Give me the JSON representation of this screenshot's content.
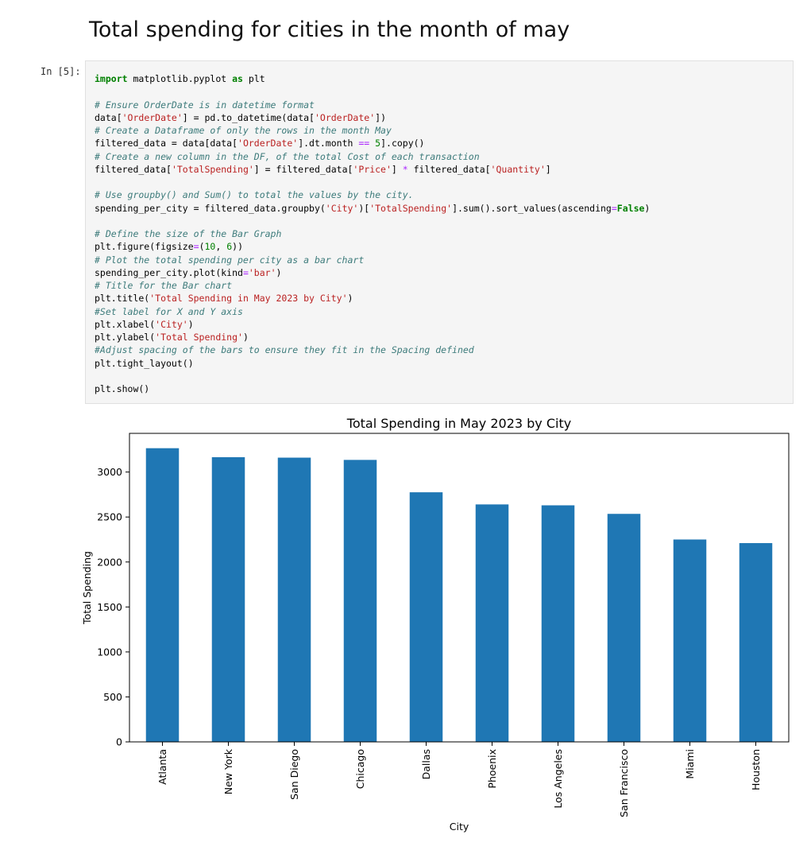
{
  "markdown": {
    "heading": "Total spending for cities in the month of may"
  },
  "cell": {
    "prompt": "In [5]:",
    "code_lines": [
      [
        [
          "kw",
          "import"
        ],
        [
          "",
          " matplotlib.pyplot "
        ],
        [
          "kw",
          "as"
        ],
        [
          "",
          " plt"
        ]
      ],
      [],
      [
        [
          "com",
          "# Ensure OrderDate is in datetime format"
        ]
      ],
      [
        [
          "",
          "data["
        ],
        [
          "str",
          "'OrderDate'"
        ],
        [
          "",
          "] = pd.to_datetime(data["
        ],
        [
          "str",
          "'OrderDate'"
        ],
        [
          "",
          "])"
        ]
      ],
      [
        [
          "com",
          "# Create a Dataframe of only the rows in the month May"
        ]
      ],
      [
        [
          "",
          "filtered_data = data[data["
        ],
        [
          "str",
          "'OrderDate'"
        ],
        [
          "",
          "].dt.month "
        ],
        [
          "op",
          "=="
        ],
        [
          "",
          " "
        ],
        [
          "num",
          "5"
        ],
        [
          "",
          "].copy()"
        ]
      ],
      [
        [
          "com",
          "# Create a new column in the DF, of the total Cost of each transaction"
        ]
      ],
      [
        [
          "",
          "filtered_data["
        ],
        [
          "str",
          "'TotalSpending'"
        ],
        [
          "",
          "] = filtered_data["
        ],
        [
          "str",
          "'Price'"
        ],
        [
          "",
          "] "
        ],
        [
          "op",
          "*"
        ],
        [
          "",
          " filtered_data["
        ],
        [
          "str",
          "'Quantity'"
        ],
        [
          "",
          "]"
        ]
      ],
      [],
      [
        [
          "com",
          "# Use groupby() and Sum() to total the values by the city."
        ]
      ],
      [
        [
          "",
          "spending_per_city = filtered_data.groupby("
        ],
        [
          "str",
          "'City'"
        ],
        [
          "",
          ")["
        ],
        [
          "str",
          "'TotalSpending'"
        ],
        [
          "",
          "].sum().sort_values(ascending"
        ],
        [
          "op",
          "="
        ],
        [
          "kwc",
          "False"
        ],
        [
          "",
          ")"
        ]
      ],
      [],
      [
        [
          "com",
          "# Define the size of the Bar Graph"
        ]
      ],
      [
        [
          "",
          "plt.figure(figsize"
        ],
        [
          "op",
          "="
        ],
        [
          "",
          "("
        ],
        [
          "num",
          "10"
        ],
        [
          "",
          ", "
        ],
        [
          "num",
          "6"
        ],
        [
          "",
          "))"
        ]
      ],
      [
        [
          "com",
          "# Plot the total spending per city as a bar chart"
        ]
      ],
      [
        [
          "",
          "spending_per_city.plot(kind"
        ],
        [
          "op",
          "="
        ],
        [
          "str",
          "'bar'"
        ],
        [
          "",
          ")"
        ]
      ],
      [
        [
          "com",
          "# Title for the Bar chart"
        ]
      ],
      [
        [
          "",
          "plt.title("
        ],
        [
          "str",
          "'Total Spending in May 2023 by City'"
        ],
        [
          "",
          ")"
        ]
      ],
      [
        [
          "com",
          "#Set label for X and Y axis"
        ]
      ],
      [
        [
          "",
          "plt.xlabel("
        ],
        [
          "str",
          "'City'"
        ],
        [
          "",
          ")"
        ]
      ],
      [
        [
          "",
          "plt.ylabel("
        ],
        [
          "str",
          "'Total Spending'"
        ],
        [
          "",
          ")"
        ]
      ],
      [
        [
          "com",
          "#Adjust spacing of the bars to ensure they fit in the Spacing defined"
        ]
      ],
      [
        [
          "",
          "plt.tight_layout()"
        ]
      ],
      [],
      [
        [
          "",
          "plt.show()"
        ]
      ]
    ]
  },
  "chart_data": {
    "type": "bar",
    "title": "Total Spending in May 2023 by City",
    "xlabel": "City",
    "ylabel": "Total Spending",
    "categories": [
      "Atlanta",
      "New York",
      "San Diego",
      "Chicago",
      "Dallas",
      "Phoenix",
      "Los Angeles",
      "San Francisco",
      "Miami",
      "Houston"
    ],
    "values": [
      3265,
      3165,
      3160,
      3135,
      2775,
      2640,
      2630,
      2535,
      2250,
      2210
    ],
    "ylim": [
      0,
      3430
    ],
    "yticks": [
      0,
      500,
      1000,
      1500,
      2000,
      2500,
      3000
    ],
    "bar_color": "#1f77b4",
    "grid": false,
    "legend": false
  }
}
